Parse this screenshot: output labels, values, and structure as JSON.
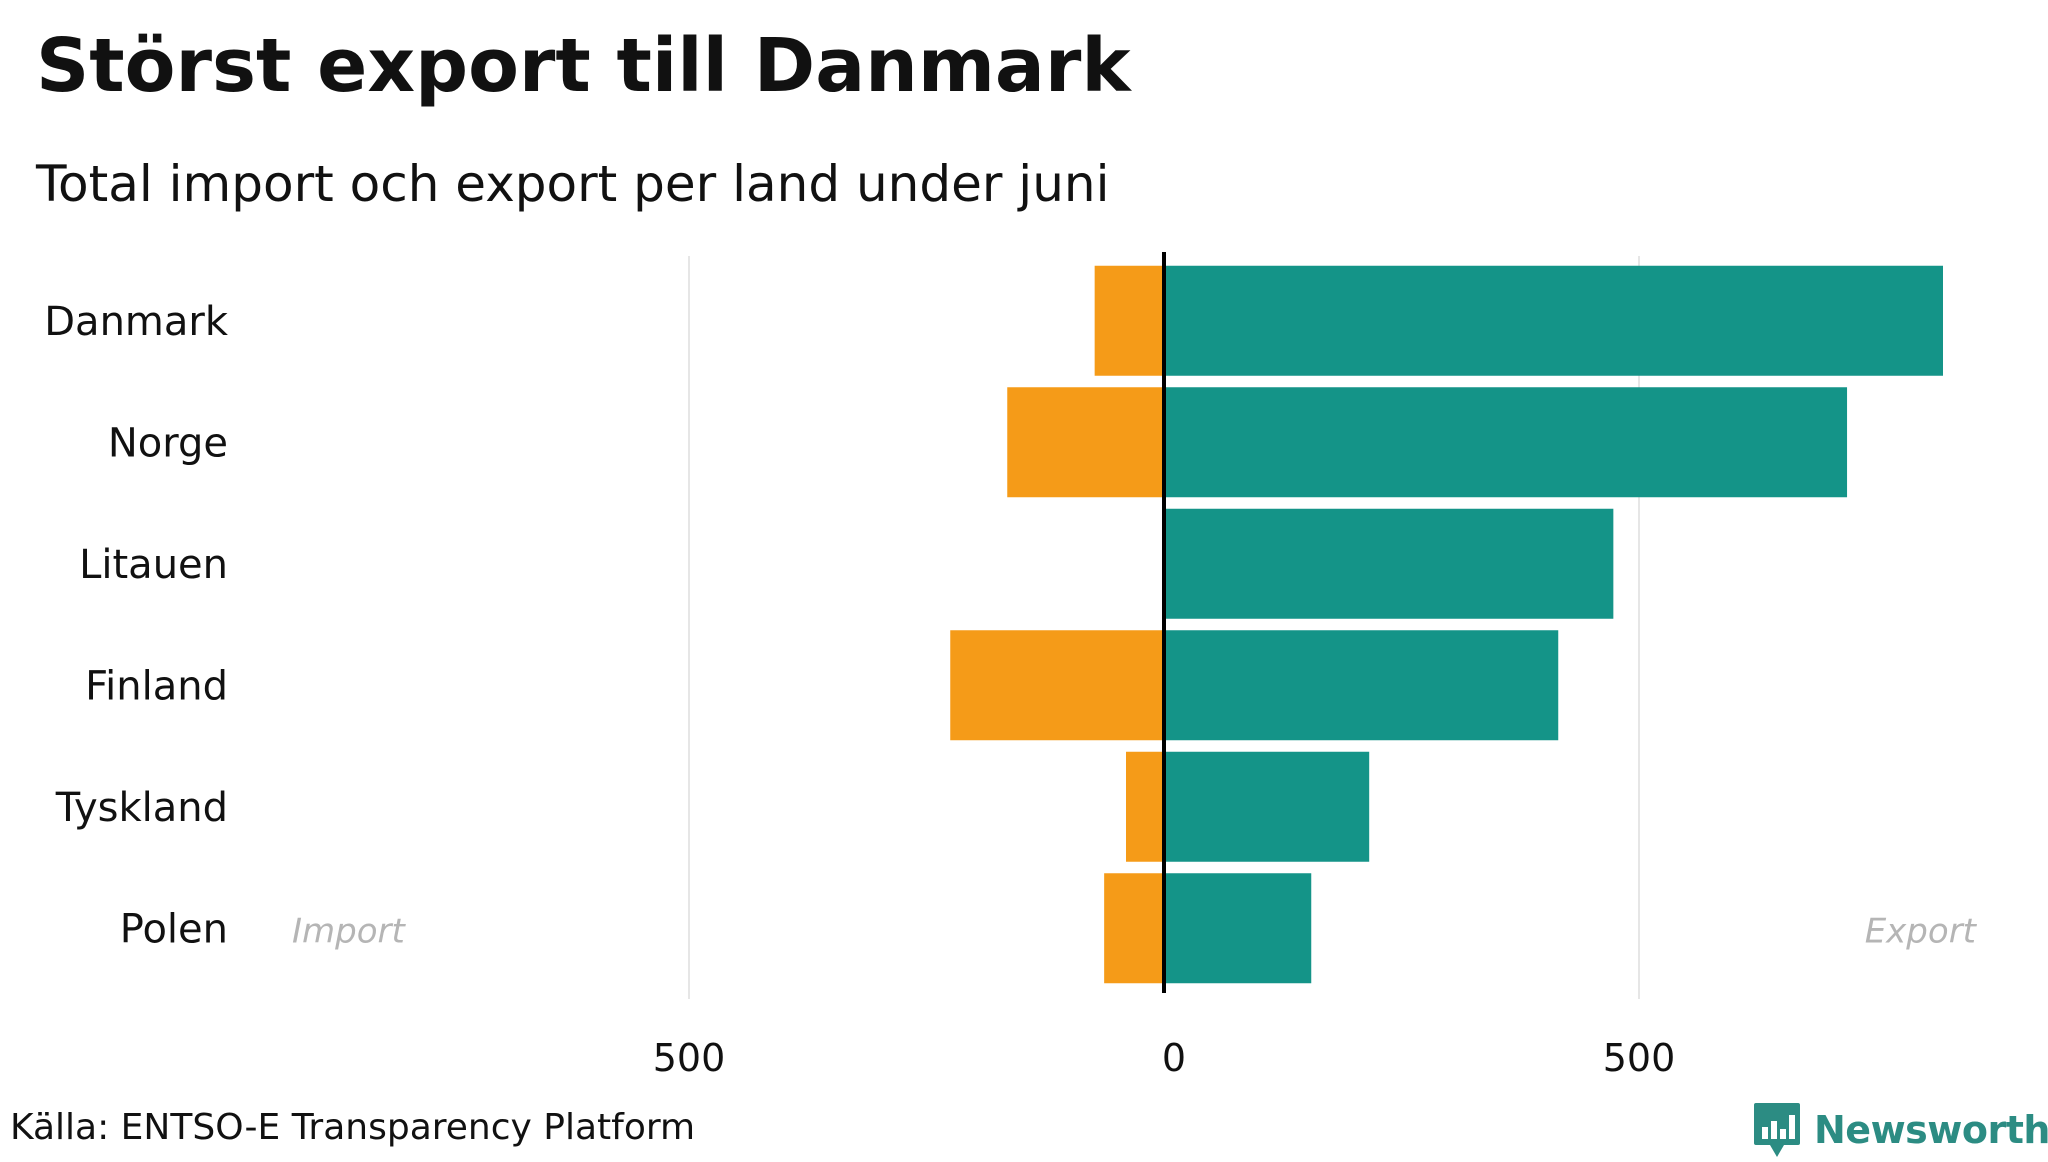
{
  "chart_data": {
    "type": "bar",
    "orientation": "horizontal",
    "title": "Störst export till Danmark",
    "subtitle": "Total import och export per land under juni",
    "categories": [
      "Danmark",
      "Norge",
      "Litauen",
      "Finland",
      "Tyskland",
      "Polen"
    ],
    "series": [
      {
        "name": "Import",
        "color": "#f59b18",
        "values": [
          -73,
          -165,
          0,
          -225,
          -40,
          -63
        ]
      },
      {
        "name": "Export",
        "color": "#149488",
        "values": [
          820,
          719,
          473,
          415,
          216,
          155
        ]
      }
    ],
    "xlim": [
      -920,
      880
    ],
    "xticks": [
      {
        "value": -500,
        "label": "500"
      },
      {
        "value": 0,
        "label": "0"
      },
      {
        "value": 500,
        "label": "500"
      }
    ],
    "annotations": {
      "import_label": "Import",
      "export_label": "Export"
    },
    "grid": "vertical",
    "zero_line_color": "#000000",
    "grid_color": "#e6e6e6",
    "source": "Källa: ENTSO-E Transparency Platform"
  },
  "brand": {
    "name": "Newsworthy",
    "icon": "newsworthy-logo-icon",
    "color": "#2c8c83"
  }
}
